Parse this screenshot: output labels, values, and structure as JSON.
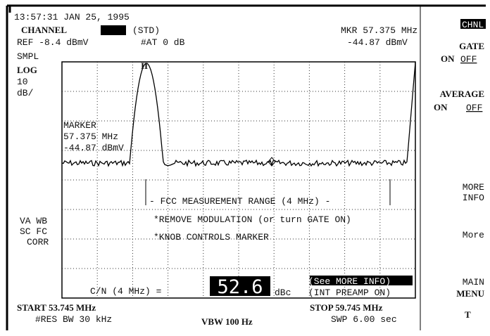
{
  "header": {
    "timestamp": "13:57:31 JAN 25, 1995",
    "channel_label": "CHANNEL",
    "standard": "(STD)",
    "marker": "MKR 57.375 MHz",
    "ref": "REF -8.4 dBmV",
    "atten": "#AT 0 dB",
    "marker_level": "-44.87 dBmV"
  },
  "left": {
    "detector": "SMPL",
    "scale": "LOG",
    "scale_value": "10",
    "scale_unit": "dB/",
    "flags": [
      "VA WB",
      "SC FC",
      "CORR"
    ]
  },
  "screen": {
    "peak_tag": "II",
    "marker_title": "MARKER",
    "marker_freq": "57.375 MHz",
    "marker_level": "-44.87 dBmV",
    "range": "- FCC MEASUREMENT RANGE (4 MHz) -",
    "msg1": "*REMOVE MODULATION (or turn GATE ON)",
    "msg2": "*KNOB CONTROLS MARKER",
    "cn_label": "C/N (4 MHz) =",
    "cn_value": "52.6",
    "cn_unit": "dBc",
    "note1": "(See MORE INFO)",
    "note2": "(INT PREAMP ON)"
  },
  "footer": {
    "start": "START 53.745 MHz",
    "rbw": "#RES BW 30 kHz",
    "vbw": "VBW 100 Hz",
    "stop": "STOP 59.745 MHz",
    "sweep": "SWP 6.00 sec"
  },
  "softkeys": {
    "chnl": "CHNL",
    "gate": "GATE",
    "gate_on": "ON",
    "gate_off": "OFF",
    "average": "AVERAGE",
    "avg_on": "ON",
    "avg_off": "OFF",
    "more_info": [
      "MORE",
      "INFO"
    ],
    "more": "More",
    "main_menu": [
      "MAIN",
      "MENU"
    ],
    "t": "T"
  }
}
